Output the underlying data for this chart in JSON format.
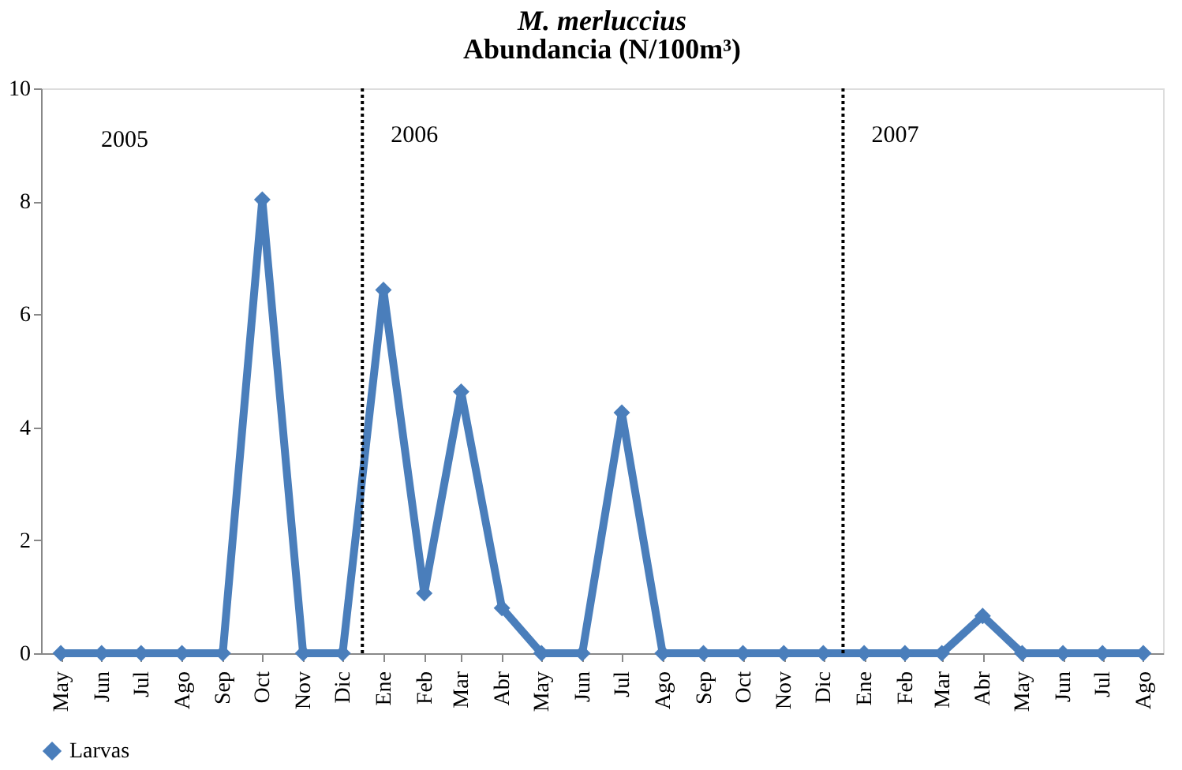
{
  "chart_data": {
    "type": "line",
    "title": "M. merluccius",
    "subtitle": "Abundancia (N/100m³)",
    "x": [
      "2005-05",
      "2005-06",
      "2005-07",
      "2005-08",
      "2005-09",
      "2005-10",
      "2005-11",
      "2005-12",
      "2006-01",
      "2006-02",
      "2006-03",
      "2006-04",
      "2006-05",
      "2006-06",
      "2006-07",
      "2006-08",
      "2006-09",
      "2006-10",
      "2006-11",
      "2006-12",
      "2007-01",
      "2007-02",
      "2007-03",
      "2007-04",
      "2007-05",
      "2007-06",
      "2007-07",
      "2007-08"
    ],
    "series": [
      {
        "name": "Larvas",
        "color": "#4a7ebb",
        "values": [
          0,
          0,
          0,
          0,
          0,
          8.03,
          0,
          0,
          6.43,
          1.06,
          4.63,
          0.8,
          0,
          0,
          4.26,
          0,
          0,
          0,
          0,
          0,
          0,
          0,
          0,
          0.66,
          0,
          0,
          0,
          0
        ]
      }
    ],
    "xlim": [
      "2005-04-16",
      "2007-08-16"
    ],
    "xticks": [
      {
        "value": "2005-05",
        "label": "May"
      },
      {
        "value": "2005-06",
        "label": "Jun"
      },
      {
        "value": "2005-07",
        "label": "Jul"
      },
      {
        "value": "2005-08",
        "label": "Ago"
      },
      {
        "value": "2005-09",
        "label": "Sep"
      },
      {
        "value": "2005-10",
        "label": "Oct"
      },
      {
        "value": "2005-11",
        "label": "Nov"
      },
      {
        "value": "2005-12",
        "label": "Dic"
      },
      {
        "value": "2006-01",
        "label": "Ene"
      },
      {
        "value": "2006-02",
        "label": "Feb"
      },
      {
        "value": "2006-03",
        "label": "Mar"
      },
      {
        "value": "2006-04",
        "label": "Abr"
      },
      {
        "value": "2006-05",
        "label": "May"
      },
      {
        "value": "2006-06",
        "label": "Jun"
      },
      {
        "value": "2006-07",
        "label": "Jul"
      },
      {
        "value": "2006-08",
        "label": "Ago"
      },
      {
        "value": "2006-09",
        "label": "Sep"
      },
      {
        "value": "2006-10",
        "label": "Oct"
      },
      {
        "value": "2006-11",
        "label": "Nov"
      },
      {
        "value": "2006-12",
        "label": "Dic"
      },
      {
        "value": "2007-01",
        "label": "Ene"
      },
      {
        "value": "2007-02",
        "label": "Feb"
      },
      {
        "value": "2007-03",
        "label": "Mar"
      },
      {
        "value": "2007-04",
        "label": "Abr"
      },
      {
        "value": "2007-05",
        "label": "May"
      },
      {
        "value": "2007-06",
        "label": "Jun"
      },
      {
        "value": "2007-07",
        "label": "Jul"
      },
      {
        "value": "2007-08",
        "label": "Ago"
      }
    ],
    "ylim": [
      0,
      10
    ],
    "yticks": [
      0,
      2,
      4,
      6,
      8,
      10
    ],
    "ref_lines": [
      {
        "axis": "x",
        "value": "2005-12-16",
        "label": "2006",
        "color": "#000000",
        "line_style": "dotted"
      },
      {
        "axis": "x",
        "value": "2006-12-16",
        "label": "2007",
        "color": "#000000",
        "line_style": "dotted"
      }
    ],
    "annotations": [
      "2005"
    ],
    "marker": "diamond",
    "line_style": "solid",
    "grid": false,
    "legend": "bottom"
  }
}
